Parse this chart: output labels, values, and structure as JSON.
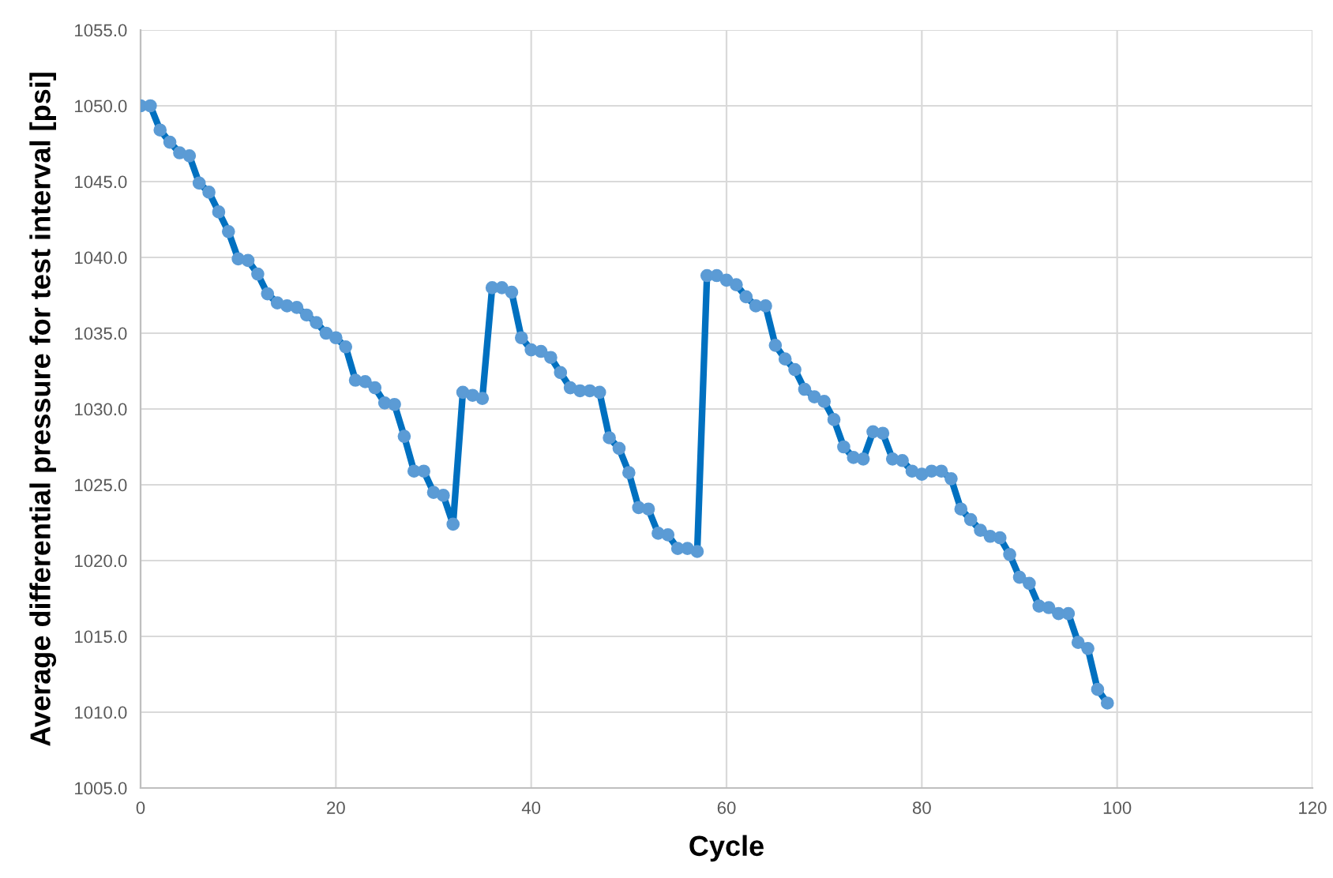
{
  "chart_data": {
    "type": "line",
    "xlabel": "Cycle",
    "ylabel": "Average differential pressure for test interval [psi]",
    "x": [
      0,
      1,
      2,
      3,
      4,
      5,
      6,
      7,
      8,
      9,
      10,
      11,
      12,
      13,
      14,
      15,
      16,
      17,
      18,
      19,
      20,
      21,
      22,
      23,
      24,
      25,
      26,
      27,
      28,
      29,
      30,
      31,
      32,
      33,
      34,
      35,
      36,
      37,
      38,
      39,
      40,
      41,
      42,
      43,
      44,
      45,
      46,
      47,
      48,
      49,
      50,
      51,
      52,
      53,
      54,
      55,
      56,
      57,
      58,
      59,
      60,
      61,
      62,
      63,
      64,
      65,
      66,
      67,
      68,
      69,
      70,
      71,
      72,
      73,
      74,
      75,
      76,
      77,
      78,
      79,
      80,
      81,
      82,
      83,
      84,
      85,
      86,
      87,
      88,
      89,
      90,
      91,
      92,
      93,
      94,
      95,
      96,
      97,
      98,
      99
    ],
    "series": [
      {
        "color": "#0070c0",
        "values": [
          1050.0,
          1050.0,
          1048.4,
          1047.6,
          1046.9,
          1046.7,
          1044.9,
          1044.3,
          1043.0,
          1041.7,
          1039.9,
          1039.8,
          1038.9,
          1037.6,
          1037.0,
          1036.8,
          1036.7,
          1036.2,
          1035.7,
          1035.0,
          1034.7,
          1034.1,
          1031.9,
          1031.8,
          1031.4,
          1030.4,
          1030.3,
          1028.2,
          1025.9,
          1025.9,
          1024.5,
          1024.3,
          1022.4,
          1031.1,
          1030.9,
          1030.7,
          1038.0,
          1038.0,
          1037.7,
          1034.7,
          1033.9,
          1033.8,
          1033.4,
          1032.4,
          1031.4,
          1031.2,
          1031.2,
          1031.1,
          1028.1,
          1027.4,
          1025.8,
          1023.5,
          1023.4,
          1021.8,
          1021.7,
          1020.8,
          1020.8,
          1020.6,
          1038.8,
          1038.8,
          1038.5,
          1038.2,
          1037.4,
          1036.8,
          1036.8,
          1034.2,
          1033.3,
          1032.6,
          1031.3,
          1030.8,
          1030.5,
          1029.3,
          1027.5,
          1026.8,
          1026.7,
          1028.5,
          1028.4,
          1026.7,
          1026.6,
          1025.9,
          1025.7,
          1025.9,
          1025.9,
          1025.4,
          1023.4,
          1022.7,
          1022.0,
          1021.6,
          1021.5,
          1020.4,
          1018.9,
          1018.5,
          1017.0,
          1016.9,
          1016.5,
          1016.5,
          1014.6,
          1014.2,
          1011.5,
          1010.6
        ]
      }
    ],
    "xlim": [
      0,
      120
    ],
    "xticks": [
      0,
      20,
      40,
      60,
      80,
      100,
      120
    ],
    "ylim": [
      1005,
      1055
    ],
    "yticks": [
      {
        "value": 1005,
        "label": "1005.0"
      },
      {
        "value": 1010,
        "label": "1010.0"
      },
      {
        "value": 1015,
        "label": "1015.0"
      },
      {
        "value": 1020,
        "label": "1020.0"
      },
      {
        "value": 1025,
        "label": "1025.0"
      },
      {
        "value": 1030,
        "label": "1030.0"
      },
      {
        "value": 1035,
        "label": "1035.0"
      },
      {
        "value": 1040,
        "label": "1040.0"
      },
      {
        "value": 1045,
        "label": "1045.0"
      },
      {
        "value": 1050,
        "label": "1050.0"
      },
      {
        "value": 1055,
        "label": "1055.0"
      }
    ],
    "grid": true,
    "marker": "circle",
    "line_style": "solid"
  }
}
